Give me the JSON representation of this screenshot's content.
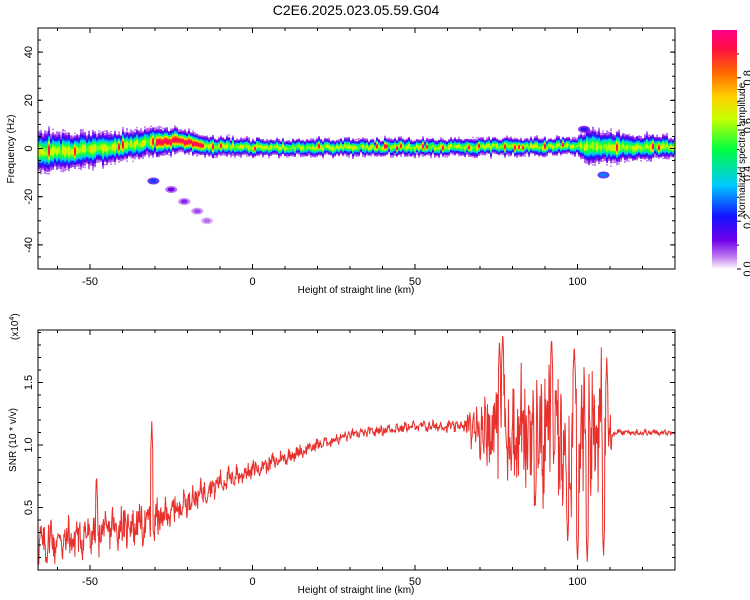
{
  "title": "C2E6.2025.023.05.59.G04",
  "colors": {
    "line": "#e8302c",
    "axes": "#000000"
  },
  "chart_data": [
    {
      "type": "heatmap",
      "xlabel": "Height of straight line (km)",
      "ylabel": "Frequency (Hz)",
      "xlim": [
        -66,
        130
      ],
      "ylim": [
        -50,
        50
      ],
      "xticks": [
        "-50",
        "0",
        "50",
        "100"
      ],
      "yticks": [
        "40",
        "20",
        "0",
        "-20",
        "-40"
      ],
      "colorbar": {
        "label": "Normalized spectral amplitude",
        "range": [
          0,
          1
        ],
        "ticks": [
          "0.0",
          "0.2",
          "0.4",
          "0.6",
          "0.8"
        ],
        "colormap": [
          "#ffffff",
          "#c07cf0",
          "#6f00e8",
          "#1414ff",
          "#00c8ff",
          "#00ff40",
          "#c8ff00",
          "#ffd000",
          "#ff6a00",
          "#ff1040",
          "#ff008c"
        ]
      },
      "band": {
        "center_hz": [
          [
            -66,
            -1.5
          ],
          [
            -55,
            -1
          ],
          [
            -40,
            1
          ],
          [
            -30,
            3
          ],
          [
            -20,
            3
          ],
          [
            -15,
            1
          ],
          [
            0,
            0.5
          ],
          [
            50,
            0.5
          ],
          [
            100,
            1
          ],
          [
            105,
            0.5
          ],
          [
            130,
            0.5
          ]
        ],
        "half_width_hz": [
          [
            -66,
            6
          ],
          [
            -50,
            5
          ],
          [
            -35,
            4
          ],
          [
            -15,
            3
          ],
          [
            0,
            2.5
          ],
          [
            100,
            2.5
          ],
          [
            103,
            5
          ],
          [
            130,
            3
          ]
        ]
      },
      "features": [
        {
          "x": -30.5,
          "y": -13.5,
          "a": 0.25
        },
        {
          "x": -25,
          "y": -17,
          "a": 0.12
        },
        {
          "x": -21,
          "y": -22,
          "a": 0.1
        },
        {
          "x": -17,
          "y": -26,
          "a": 0.08
        },
        {
          "x": -14,
          "y": -30,
          "a": 0.06
        },
        {
          "x": 108,
          "y": -11,
          "a": 0.3
        },
        {
          "x": 102,
          "y": 8,
          "a": 0.2
        }
      ]
    },
    {
      "type": "line",
      "xlabel": "Height of straight line (km)",
      "ylabel": "SNR (10 * v/v)",
      "scale_label": "(x10",
      "scale_exponent": "4",
      "scale_suffix": ")",
      "xlim": [
        -66,
        130
      ],
      "ylim": [
        0,
        1.92
      ],
      "xticks": [
        "-50",
        "0",
        "50",
        "100"
      ],
      "yticks": [
        "0.5",
        "1.0",
        "1.5"
      ],
      "series": [
        {
          "name": "",
          "trend": [
            [
              -66,
              0.2
            ],
            [
              -50,
              0.28
            ],
            [
              -40,
              0.35
            ],
            [
              -30,
              0.38
            ],
            [
              -20,
              0.55
            ],
            [
              -10,
              0.7
            ],
            [
              0,
              0.8
            ],
            [
              10,
              0.9
            ],
            [
              20,
              1.0
            ],
            [
              30,
              1.08
            ],
            [
              40,
              1.12
            ],
            [
              50,
              1.15
            ],
            [
              60,
              1.15
            ],
            [
              70,
              1.15
            ],
            [
              80,
              1.1
            ],
            [
              90,
              1.05
            ],
            [
              100,
              1.05
            ],
            [
              108,
              1.1
            ],
            [
              130,
              1.1
            ]
          ],
          "noise_amp": [
            [
              -66,
              0.18
            ],
            [
              -30,
              0.18
            ],
            [
              -20,
              0.12
            ],
            [
              0,
              0.08
            ],
            [
              30,
              0.04
            ],
            [
              65,
              0.05
            ],
            [
              70,
              0.35
            ],
            [
              80,
              0.5
            ],
            [
              100,
              0.65
            ],
            [
              109,
              0.6
            ],
            [
              111,
              0.03
            ],
            [
              130,
              0.02
            ]
          ],
          "peaks": [
            [
              -62,
              0.45
            ],
            [
              -48,
              0.78
            ],
            [
              -31,
              1.19
            ],
            [
              76,
              1.85
            ],
            [
              77,
              1.92
            ],
            [
              92,
              1.88
            ],
            [
              99,
              1.82
            ],
            [
              109,
              1.7
            ]
          ],
          "dips": [
            [
              87,
              0.5
            ],
            [
              97,
              0.2
            ],
            [
              100,
              0.05
            ],
            [
              103,
              0.05
            ],
            [
              108,
              0.1
            ]
          ]
        }
      ]
    }
  ]
}
